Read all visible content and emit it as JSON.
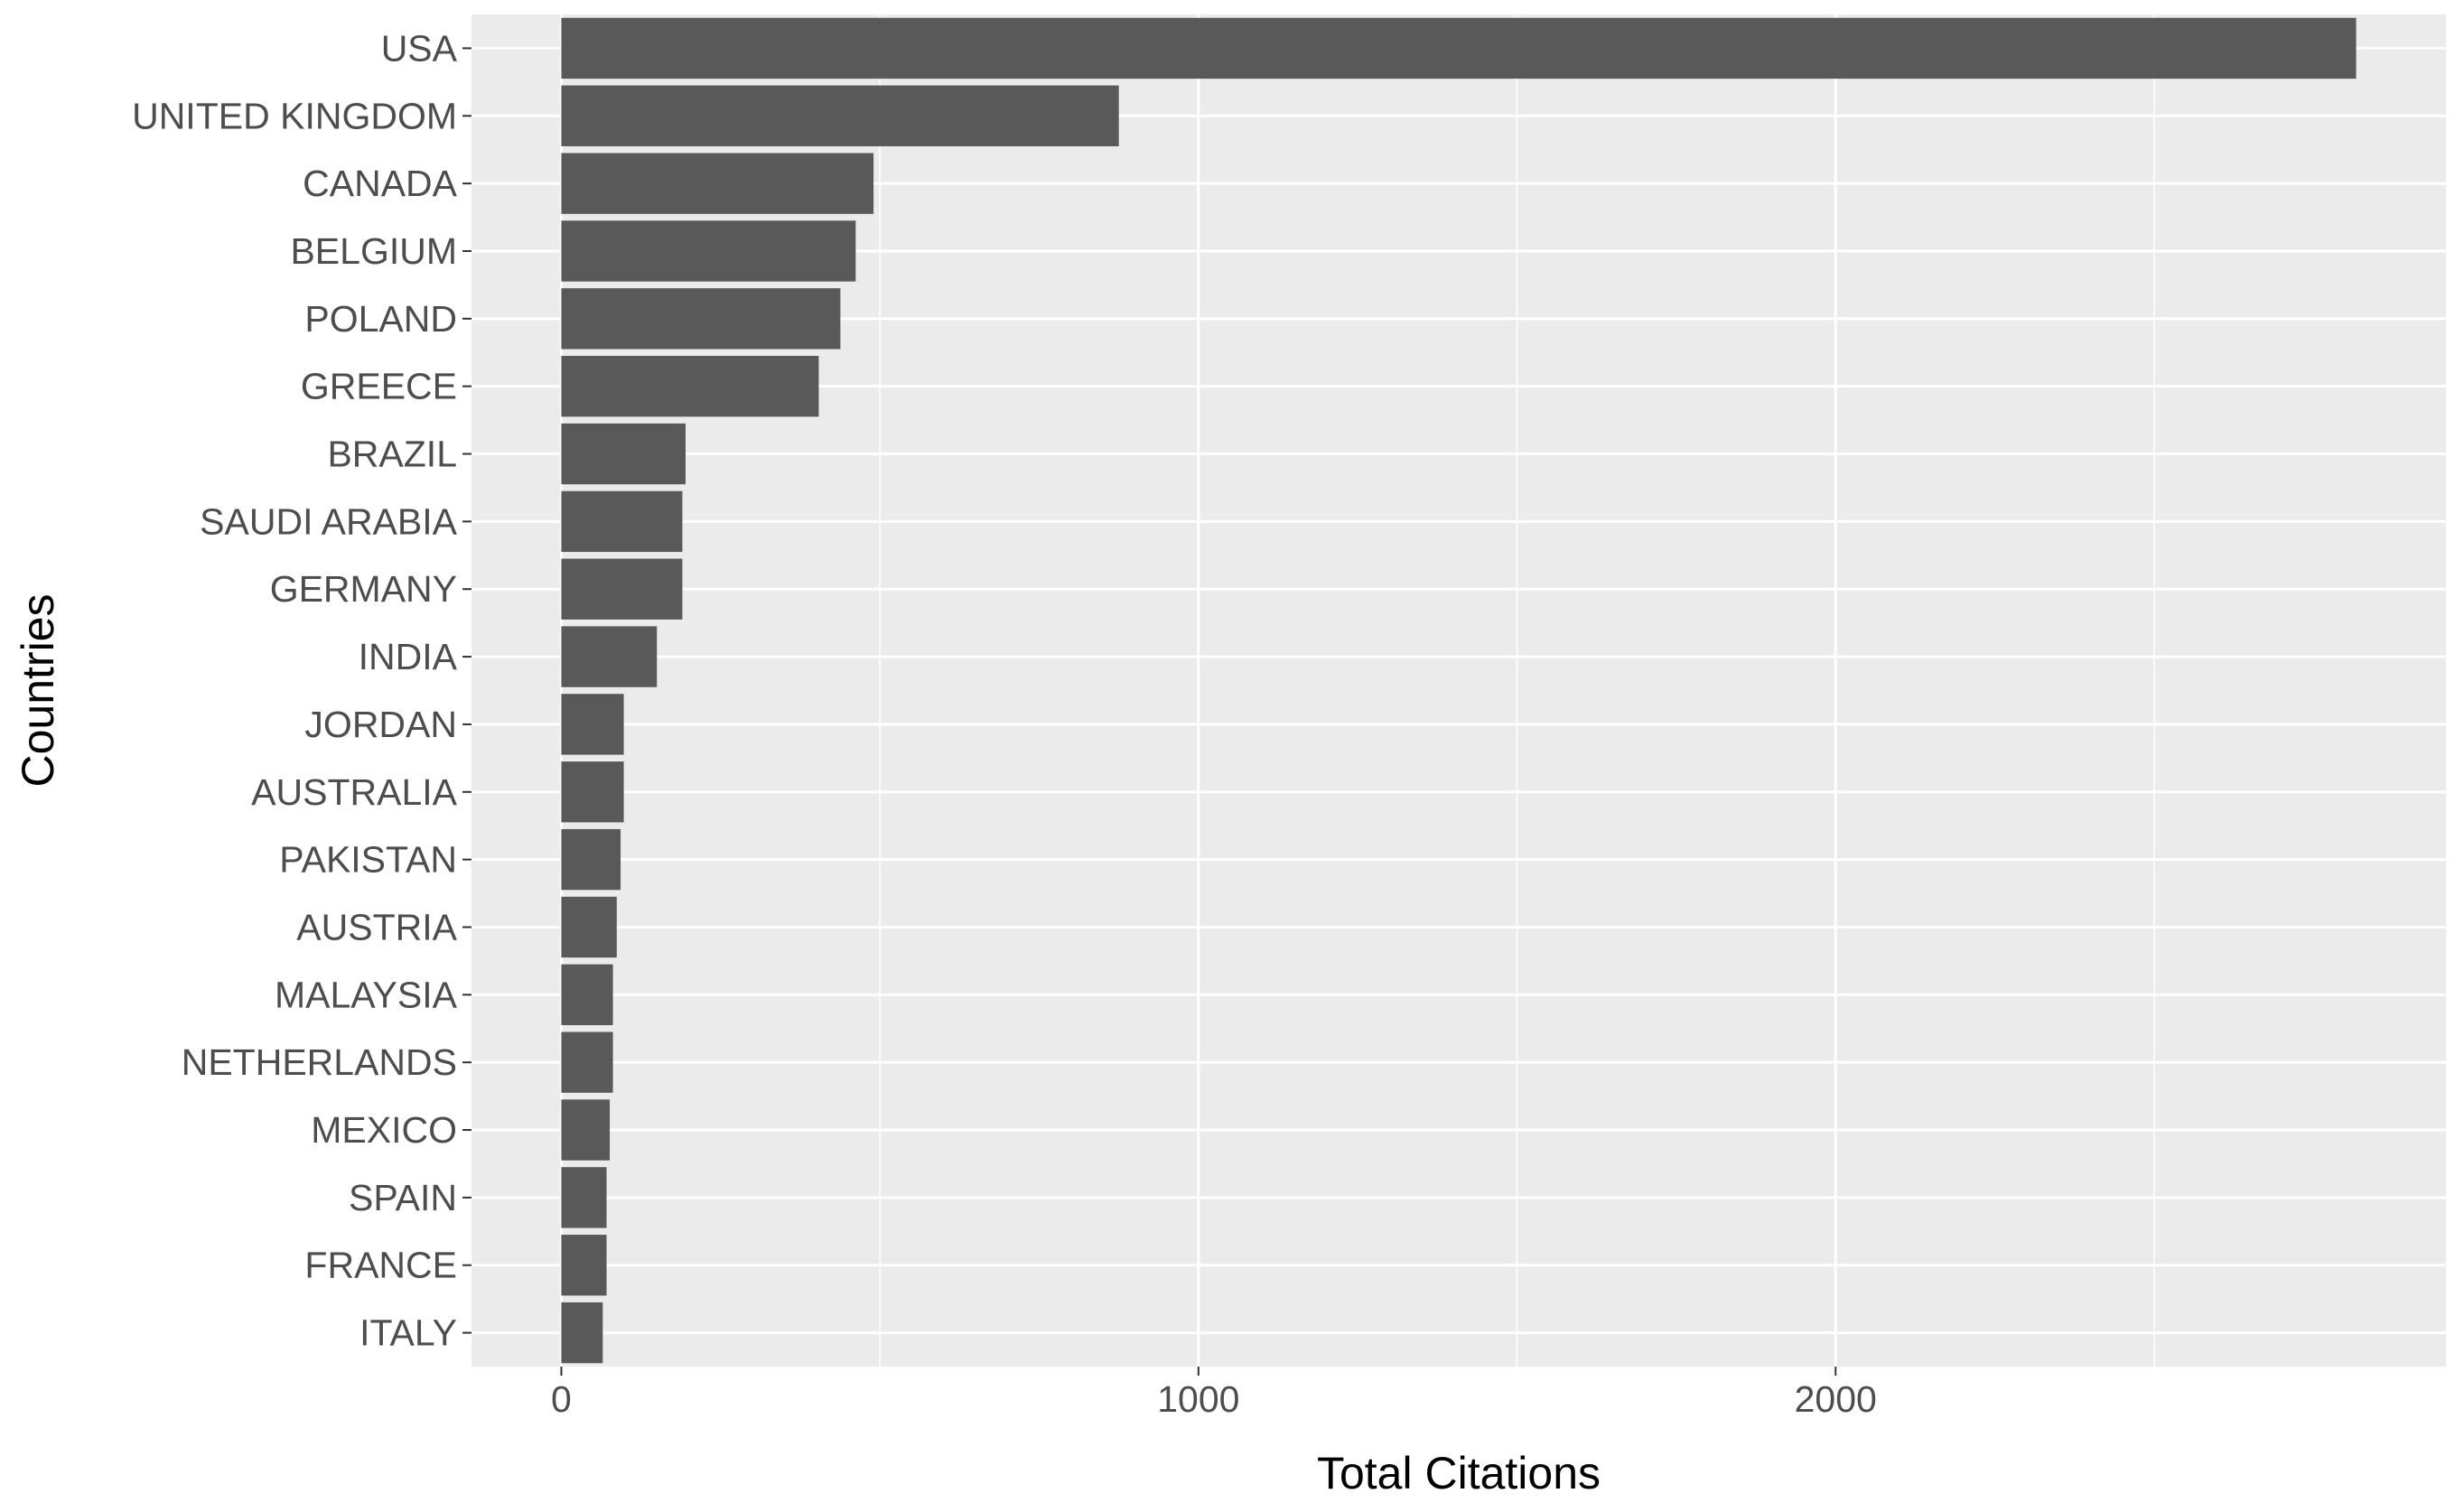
{
  "chart_data": {
    "type": "bar",
    "orientation": "horizontal",
    "title": "",
    "xlabel": "Total Citations",
    "ylabel": "Countries",
    "categories": [
      "USA",
      "UNITED KINGDOM",
      "CANADA",
      "BELGIUM",
      "POLAND",
      "GREECE",
      "BRAZIL",
      "SAUDI ARABIA",
      "GERMANY",
      "INDIA",
      "JORDAN",
      "AUSTRALIA",
      "PAKISTAN",
      "AUSTRIA",
      "MALAYSIA",
      "NETHERLANDS",
      "MEXICO",
      "SPAIN",
      "FRANCE",
      "ITALY"
    ],
    "values": [
      2817,
      875,
      490,
      462,
      438,
      404,
      195,
      190,
      190,
      150,
      98,
      98,
      93,
      87,
      81,
      81,
      76,
      71,
      71,
      65
    ],
    "xlim": [
      -141,
      2958
    ],
    "xticks": [
      0,
      1000,
      2000
    ],
    "xtick_labels": [
      "0",
      "1000",
      "2000"
    ],
    "x_minor_gridlines": [
      500,
      1500,
      2500
    ],
    "grid": true,
    "legend": "none",
    "colors": {
      "bar": "#595959",
      "panel_background": "#ebebeb",
      "gridline": "#ffffff",
      "tick_label": "#4d4d4d",
      "axis_title": "#000000",
      "tick_mark": "#333333"
    }
  }
}
